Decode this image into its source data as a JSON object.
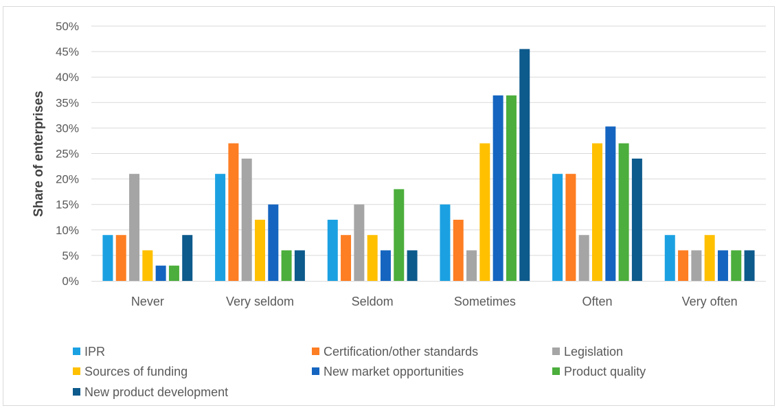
{
  "chart_data": {
    "type": "bar",
    "title": "",
    "xlabel": "",
    "ylabel": "Share of enterprises",
    "ylim": [
      0,
      50
    ],
    "yticks": [
      "0%",
      "5%",
      "10%",
      "15%",
      "20%",
      "25%",
      "30%",
      "35%",
      "40%",
      "45%",
      "50%"
    ],
    "grid": true,
    "legend_position": "bottom",
    "categories": [
      "Never",
      "Very seldom",
      "Seldom",
      "Sometimes",
      "Often",
      "Very often"
    ],
    "series": [
      {
        "name": "IPR",
        "color": "#1ba1e2",
        "values": [
          9,
          21,
          12,
          15,
          21,
          9
        ]
      },
      {
        "name": "Certification/other standards",
        "color": "#fd7e23",
        "values": [
          9,
          27,
          9,
          12,
          21,
          6
        ]
      },
      {
        "name": "Legislation",
        "color": "#a5a5a5",
        "values": [
          21,
          24,
          15,
          6,
          9,
          6
        ]
      },
      {
        "name": "Sources of funding",
        "color": "#ffc000",
        "values": [
          6,
          12,
          9,
          27,
          27,
          9
        ]
      },
      {
        "name": "New market opportunities",
        "color": "#1565c0",
        "values": [
          3,
          15,
          6,
          36.4,
          30.3,
          6
        ]
      },
      {
        "name": "Product quality",
        "color": "#4cae3c",
        "values": [
          3,
          6,
          18,
          36.4,
          27,
          6
        ]
      },
      {
        "name": "New product development",
        "color": "#0d5a8c",
        "values": [
          9,
          6,
          6,
          45.5,
          24,
          6
        ]
      }
    ]
  }
}
